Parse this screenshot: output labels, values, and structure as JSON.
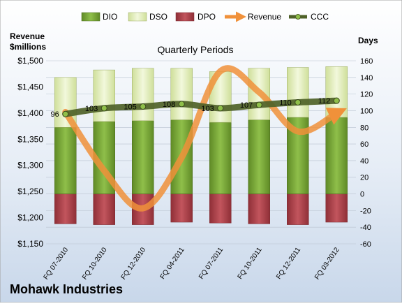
{
  "chart_data": {
    "type": "bar",
    "title": "Quarterly Periods",
    "company": "Mohawk Industries",
    "left_axis_label": [
      "Revenue",
      "$millions"
    ],
    "right_axis_label": "Days",
    "categories": [
      "FQ 07-2010",
      "FQ 10-2010",
      "FQ 12-2010",
      "FQ 04-2011",
      "FQ 07-2011",
      "FQ 10-2011",
      "FQ 12-2011",
      "FQ 03-2012"
    ],
    "left_axis": {
      "min": 1150,
      "max": 1500,
      "step": 50,
      "ticks": [
        "$1,150",
        "$1,200",
        "$1,250",
        "$1,300",
        "$1,350",
        "$1,400",
        "$1,450",
        "$1,500"
      ]
    },
    "right_axis": {
      "min": -60,
      "max": 160,
      "step": 20,
      "ticks": [
        "-60",
        "-40",
        "-20",
        "0",
        "20",
        "40",
        "60",
        "80",
        "100",
        "120",
        "140",
        "160"
      ]
    },
    "legend_position": "top",
    "grid": true,
    "series": [
      {
        "name": "DIO",
        "kind": "bar",
        "axis": "days",
        "color": "#7aa83a",
        "values": [
          80,
          87,
          88,
          89,
          86,
          89,
          92,
          92
        ]
      },
      {
        "name": "DSO",
        "kind": "bar",
        "axis": "days",
        "color": "#e6f0c0",
        "values": [
          60,
          62,
          63,
          62,
          61,
          62,
          60,
          61
        ]
      },
      {
        "name": "DPO",
        "kind": "bar",
        "axis": "days",
        "color": "#b5474f",
        "values": [
          -36,
          -37,
          -37,
          -34,
          -35,
          -36,
          -37,
          -34
        ]
      },
      {
        "name": "Revenue",
        "kind": "line",
        "axis": "revenue",
        "color": "#f0913a",
        "values": [
          1402,
          1290,
          1218,
          1315,
          1480,
          1440,
          1365,
          1400
        ]
      },
      {
        "name": "CCC",
        "kind": "line",
        "axis": "days",
        "color": "#4f6228",
        "values": [
          96,
          103,
          105,
          108,
          103,
          107,
          110,
          112
        ]
      }
    ]
  }
}
